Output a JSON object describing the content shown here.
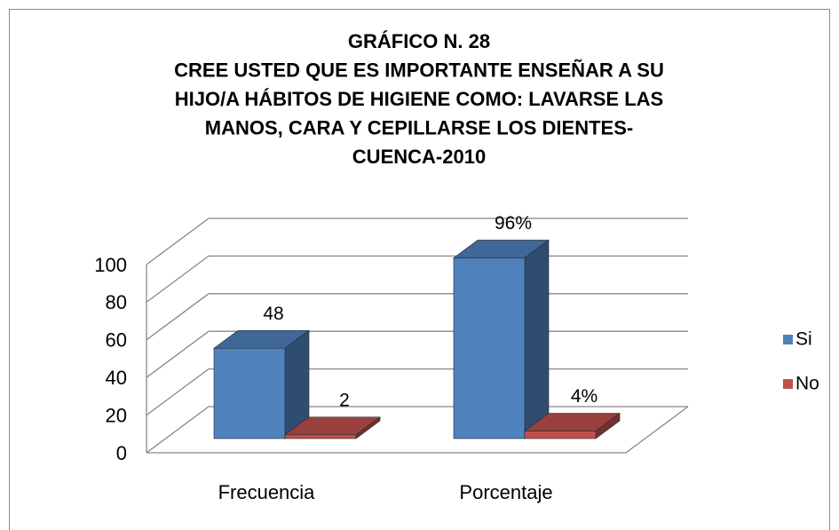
{
  "chart_data": {
    "type": "bar3d",
    "title": [
      "GRÁFICO N. 28",
      "CREE USTED QUE ES IMPORTANTE ENSEÑAR A SU",
      "HIJO/A HÁBITOS DE HIGIENE COMO: LAVARSE LAS",
      "MANOS, CARA Y CEPILLARSE LOS DIENTES-",
      "CUENCA-2010"
    ],
    "categories": [
      "Frecuencia",
      "Porcentaje"
    ],
    "series": [
      {
        "name": "Si",
        "color": "#4f81bd",
        "values": [
          48,
          96
        ],
        "value_labels": [
          "48",
          "96%"
        ]
      },
      {
        "name": "No",
        "color": "#c0504d",
        "values": [
          2,
          4
        ],
        "value_labels": [
          "2",
          "4%"
        ]
      }
    ],
    "ylim": [
      0,
      100
    ],
    "yticks": [
      0,
      20,
      40,
      60,
      80,
      100
    ],
    "grid": true,
    "legend": "right"
  }
}
